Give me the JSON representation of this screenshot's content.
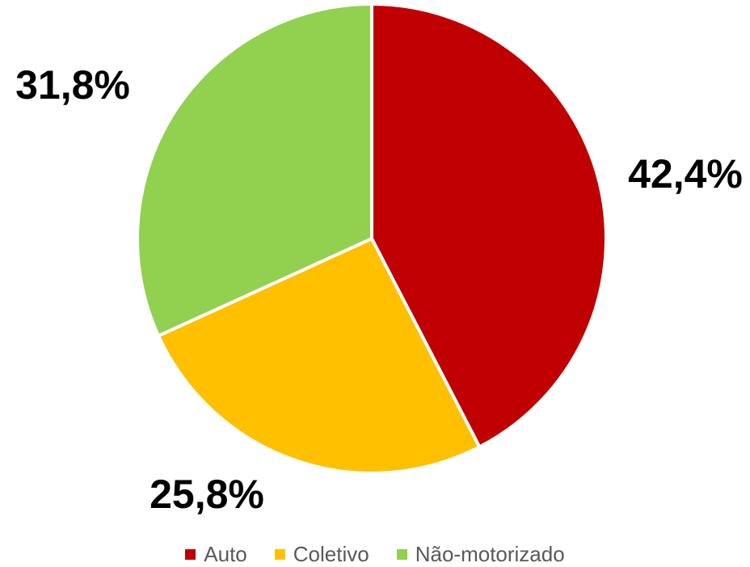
{
  "chart_data": {
    "type": "pie",
    "categories": [
      "Auto",
      "Coletivo",
      "Não-motorizado"
    ],
    "values": [
      42.4,
      25.8,
      31.8
    ],
    "labels": [
      "42,4%",
      "25,8%",
      "31,8%"
    ],
    "colors": [
      "#C00000",
      "#FFC000",
      "#92D050"
    ],
    "start_angle": "12 o'clock",
    "direction": "clockwise",
    "legend_position": "bottom"
  },
  "legend": {
    "items": [
      {
        "label": "Auto",
        "color": "#C00000"
      },
      {
        "label": "Coletivo",
        "color": "#FFC000"
      },
      {
        "label": "Não-motorizado",
        "color": "#92D050"
      }
    ]
  }
}
